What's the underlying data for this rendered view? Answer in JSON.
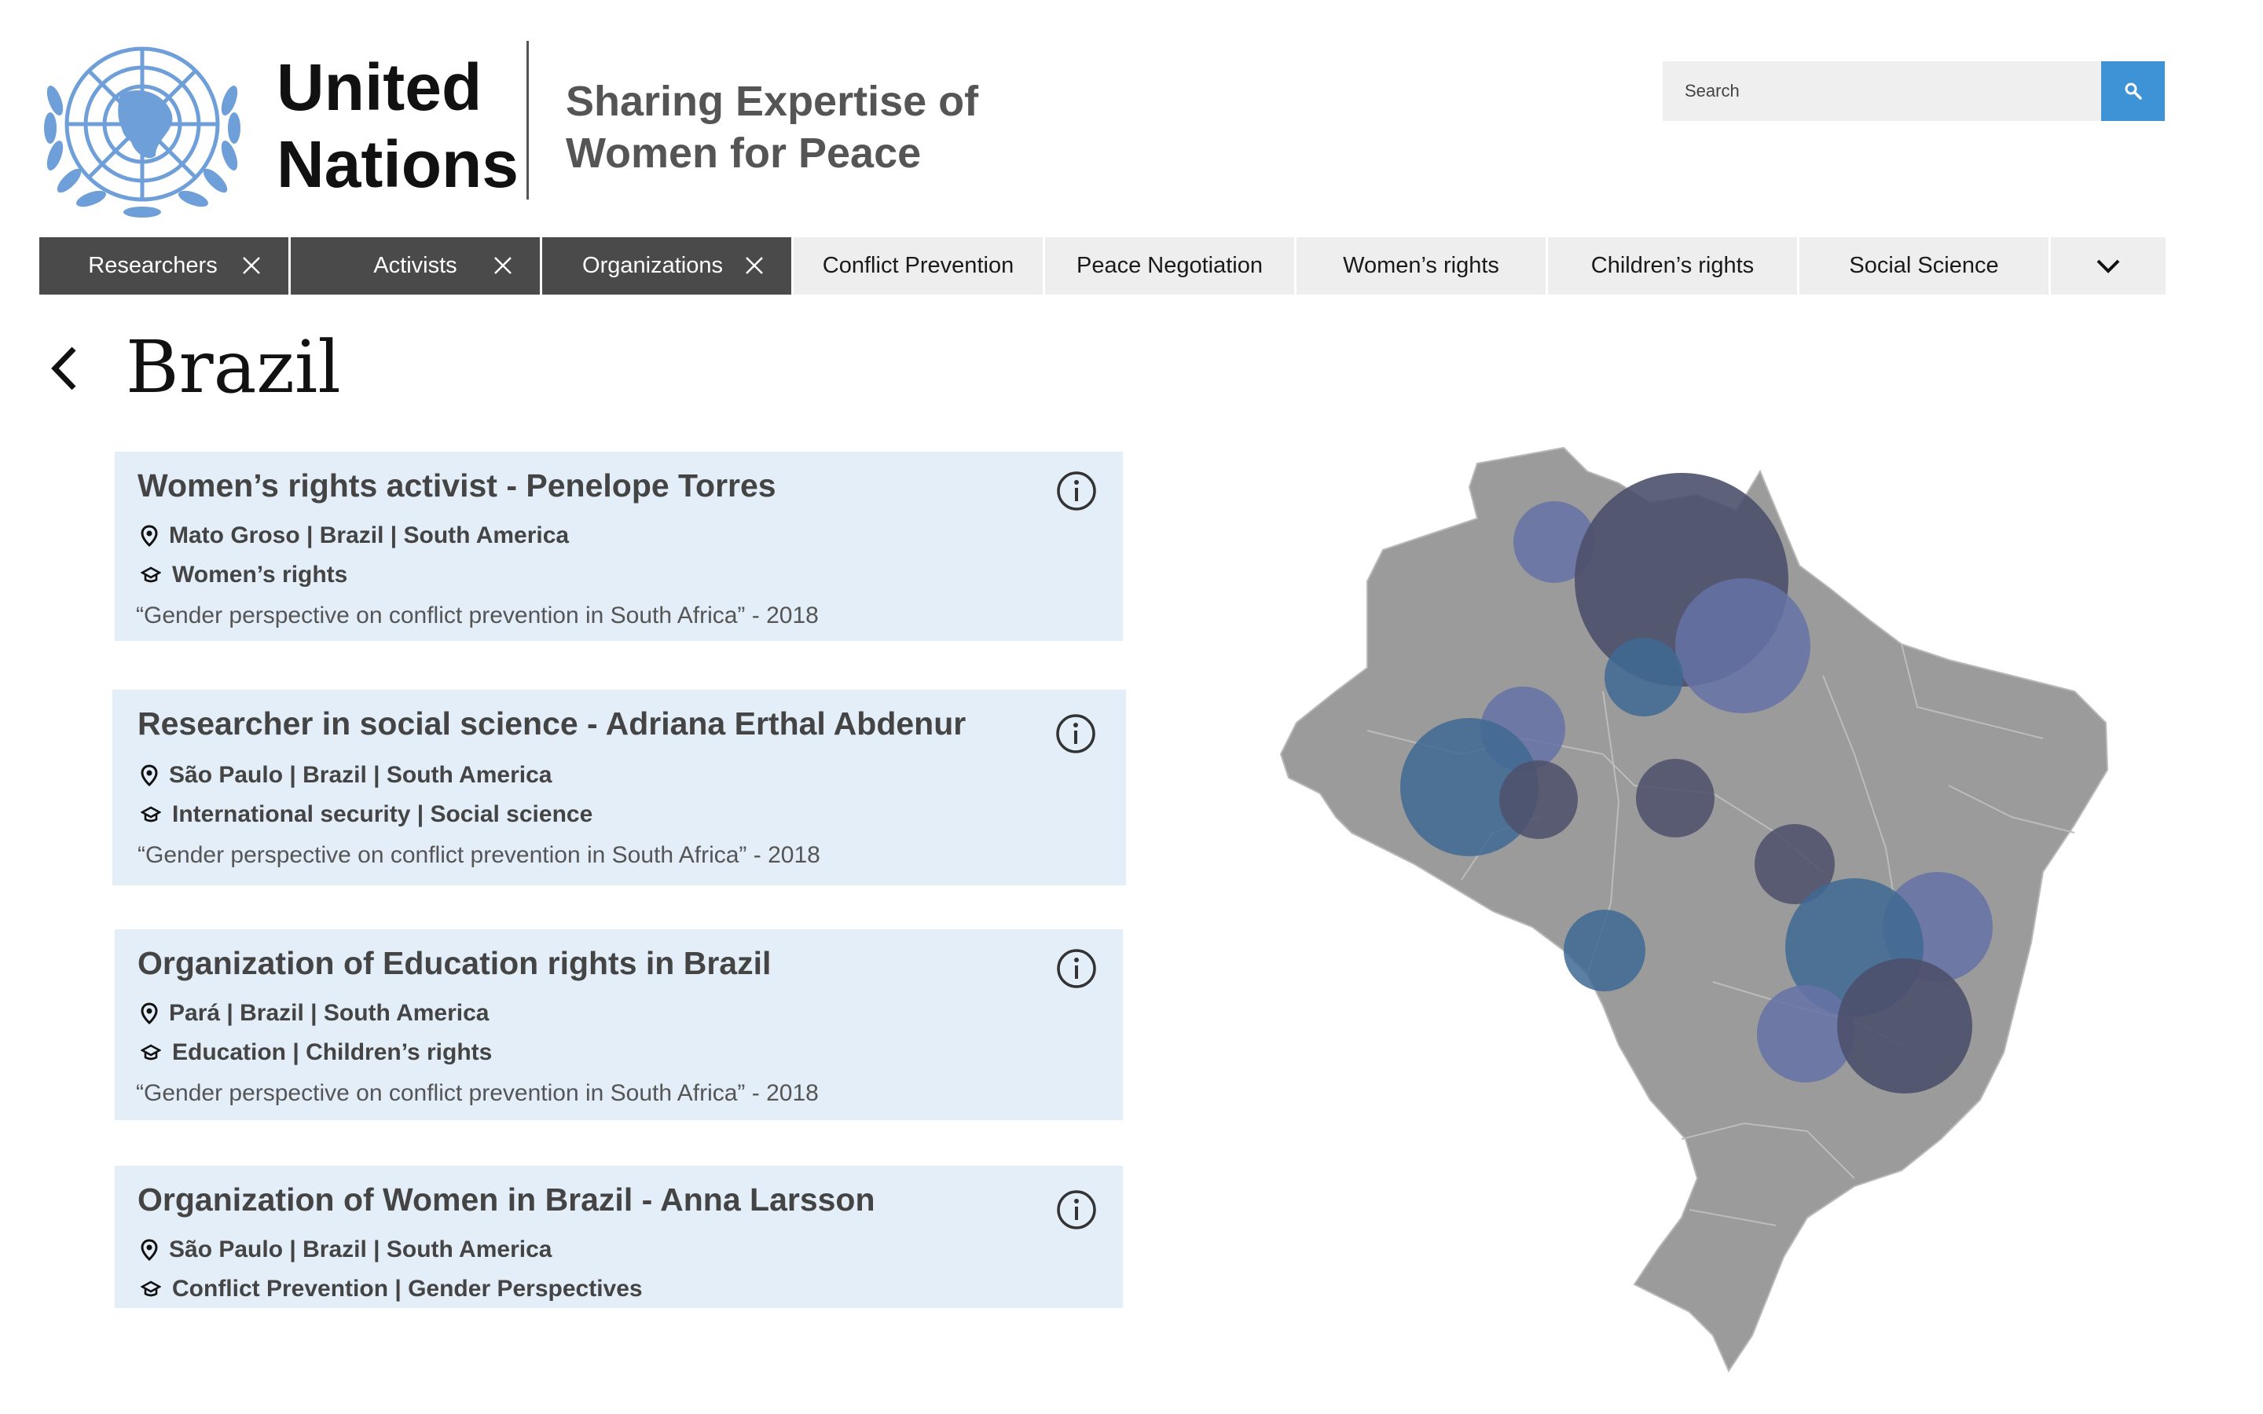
{
  "header": {
    "brand_line1": "United",
    "brand_line2": "Nations",
    "tagline_line1": "Sharing Expertise of",
    "tagline_line2": "Women for Peace"
  },
  "search": {
    "placeholder": "Search",
    "value": ""
  },
  "filters": [
    {
      "label": "Researchers",
      "active": true
    },
    {
      "label": "Activists",
      "active": true
    },
    {
      "label": "Organizations",
      "active": true
    },
    {
      "label": "Conflict Prevention",
      "active": false
    },
    {
      "label": "Peace Negotiation",
      "active": false
    },
    {
      "label": "Women’s rights",
      "active": false
    },
    {
      "label": "Children’s rights",
      "active": false
    },
    {
      "label": "Social Science",
      "active": false
    }
  ],
  "page": {
    "title": "Brazil"
  },
  "cards": [
    {
      "title": "Women’s rights activist - Penelope Torres",
      "location": "Mato Groso | Brazil | South America",
      "expertise": "Women’s rights",
      "quote": "“Gender perspective on conflict prevention in South Africa” - 2018"
    },
    {
      "title": "Researcher in social science - Adriana Erthal Abdenur",
      "location": "São Paulo | Brazil | South America",
      "expertise": "International security | Social science",
      "quote": "“Gender perspective on conflict prevention in South Africa” - 2018"
    },
    {
      "title": "Organization of Education rights in Brazil",
      "location": "Pará | Brazil | South America",
      "expertise": "Education | Children’s rights",
      "quote": "“Gender perspective on conflict prevention in South Africa” - 2018"
    },
    {
      "title": "Organization of Women in Brazil - Anna Larsson",
      "location": "São Paulo | Brazil | South America",
      "expertise": "Conflict Prevention | Gender Perspectives",
      "quote": ""
    }
  ],
  "colors": {
    "accent": "#3e93d6",
    "active_chip": "#4a4a4a",
    "inactive_chip": "#eeeeee",
    "card_bg": "#e3eef8",
    "map_land": "#9b9b9b",
    "bubble_navy": "#4d506b",
    "bubble_periwinkle": "#6572a6",
    "bubble_steel": "#3f6a93",
    "logo_blue": "#6f9fd8"
  }
}
